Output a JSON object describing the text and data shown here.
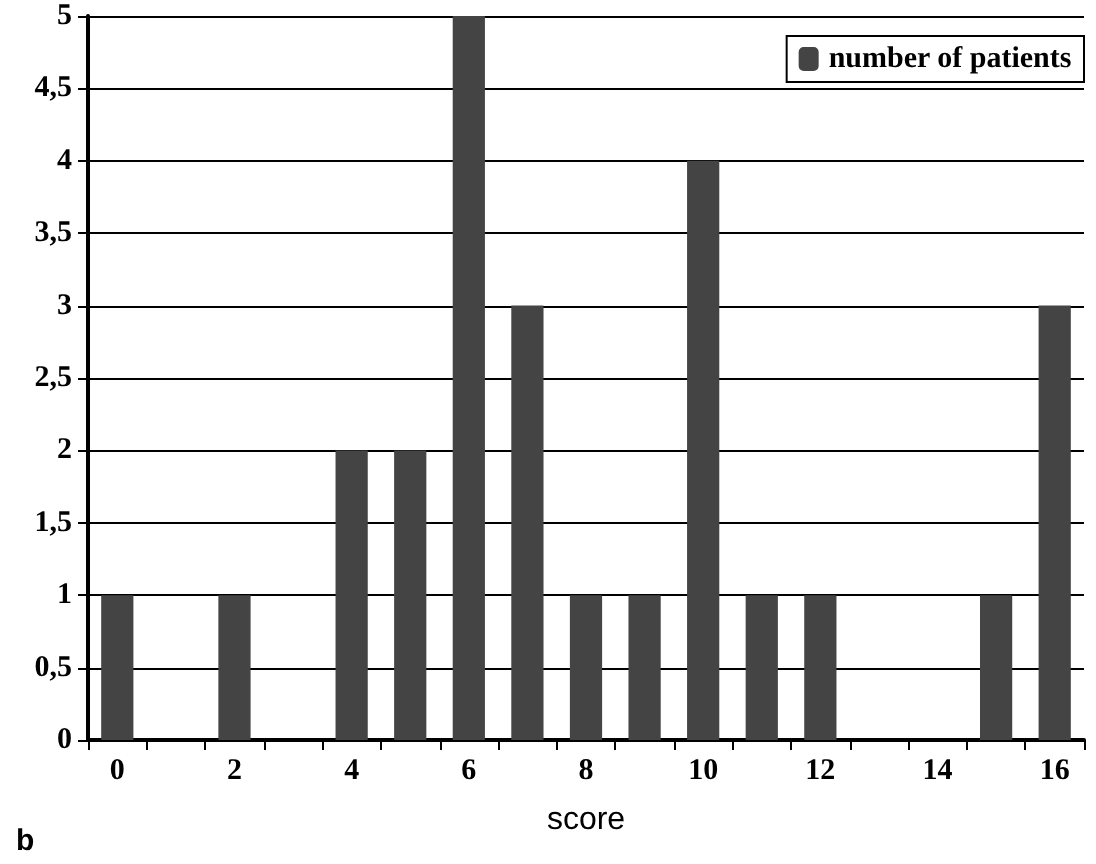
{
  "chart_data": {
    "type": "bar",
    "xlabel": "score",
    "annotations": [
      "b"
    ],
    "categories": [
      "0",
      null,
      "2",
      null,
      "4",
      null,
      "6",
      null,
      "8",
      null,
      "10",
      null,
      "12",
      null,
      "14",
      null,
      "16"
    ],
    "series": [
      {
        "name": "number of patients",
        "color": "#444444",
        "values": [
          1,
          0,
          1,
          0,
          2,
          2,
          5,
          3,
          1,
          1,
          4,
          1,
          1,
          0,
          0,
          1,
          3
        ]
      }
    ],
    "ylim": [
      0,
      5
    ],
    "yticks": [
      0,
      {
        "value": 0.5,
        "label": "0,5"
      },
      1,
      {
        "value": 1.5,
        "label": "1,5"
      },
      2,
      {
        "value": 2.5,
        "label": "2,5"
      },
      3,
      {
        "value": 3.5,
        "label": "3,5"
      },
      4,
      {
        "value": 4.5,
        "label": "4,5"
      },
      5
    ],
    "grid": "y",
    "legend": "top right"
  }
}
